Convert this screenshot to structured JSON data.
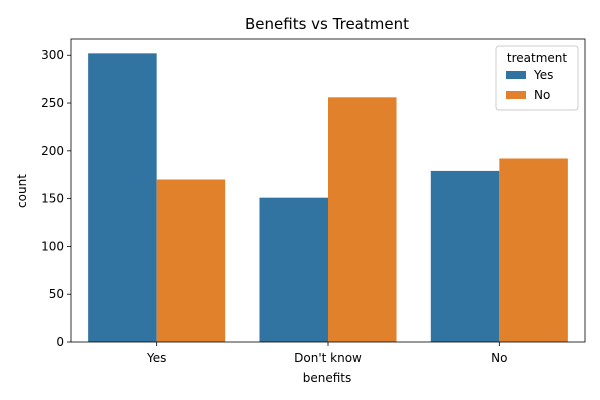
{
  "chart_data": {
    "type": "bar",
    "title": "Benefits vs Treatment",
    "xlabel": "benefits",
    "ylabel": "count",
    "categories": [
      "Yes",
      "Don't know",
      "No"
    ],
    "series": [
      {
        "name": "Yes",
        "values": [
          302,
          151,
          179
        ],
        "color": "#3274a1"
      },
      {
        "name": "No",
        "values": [
          170,
          256,
          192
        ],
        "color": "#e1812c"
      }
    ],
    "ylim": [
      0,
      317
    ],
    "yticks": [
      0,
      50,
      100,
      150,
      200,
      250,
      300
    ],
    "legend": {
      "title": "treatment",
      "placement": "top-right"
    },
    "grid": false
  }
}
